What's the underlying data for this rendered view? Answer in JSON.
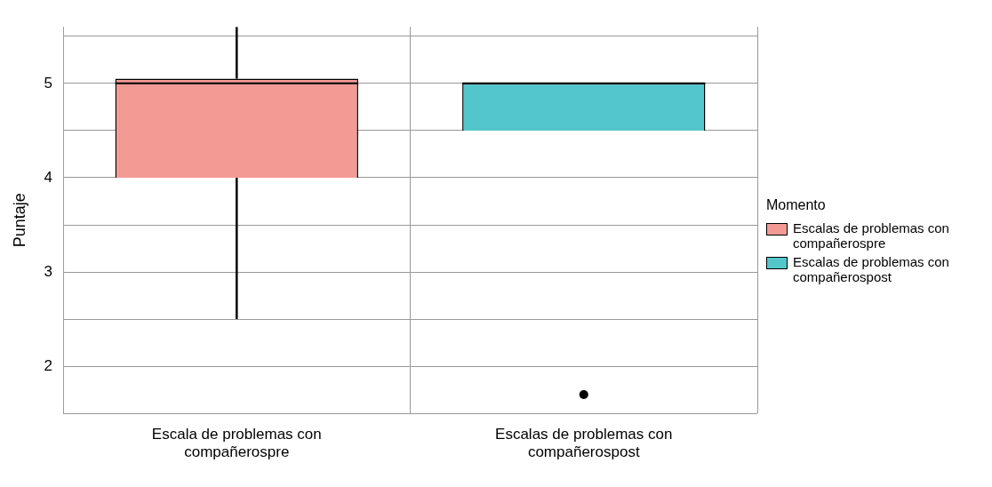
{
  "chart_data": {
    "type": "box",
    "ylabel": "Puntaje",
    "legend_title": "Momento",
    "legend": "right",
    "grid": true,
    "categories": [
      "Escala de problemas con compañerospre",
      "Escalas de problemas con compañerospost"
    ],
    "ylim": [
      1.5,
      5.6
    ],
    "yticks": [
      {
        "value": 1.5,
        "label": null
      },
      2,
      {
        "value": 2.5,
        "label": null
      },
      3,
      {
        "value": 3.5,
        "label": null
      },
      4,
      {
        "value": 4.5,
        "label": null
      },
      5,
      {
        "value": 5.5,
        "label": null
      }
    ],
    "series": [
      {
        "name": "Escalas de problemas con compañerospre",
        "color": "#f39a94",
        "boxes": [
          {
            "low": 2.5,
            "q1": 4,
            "median": 5,
            "q3": 5.05,
            "high": 5.6
          },
          null
        ]
      },
      {
        "name": "Escalas de problemas con compañerospost",
        "color": "#53c6cc",
        "boxes": [
          null,
          {
            "low": 4.5,
            "q1": 4.5,
            "median": 5,
            "q3": 5,
            "high": 5,
            "outliers": [
              1.7
            ]
          }
        ]
      }
    ]
  }
}
